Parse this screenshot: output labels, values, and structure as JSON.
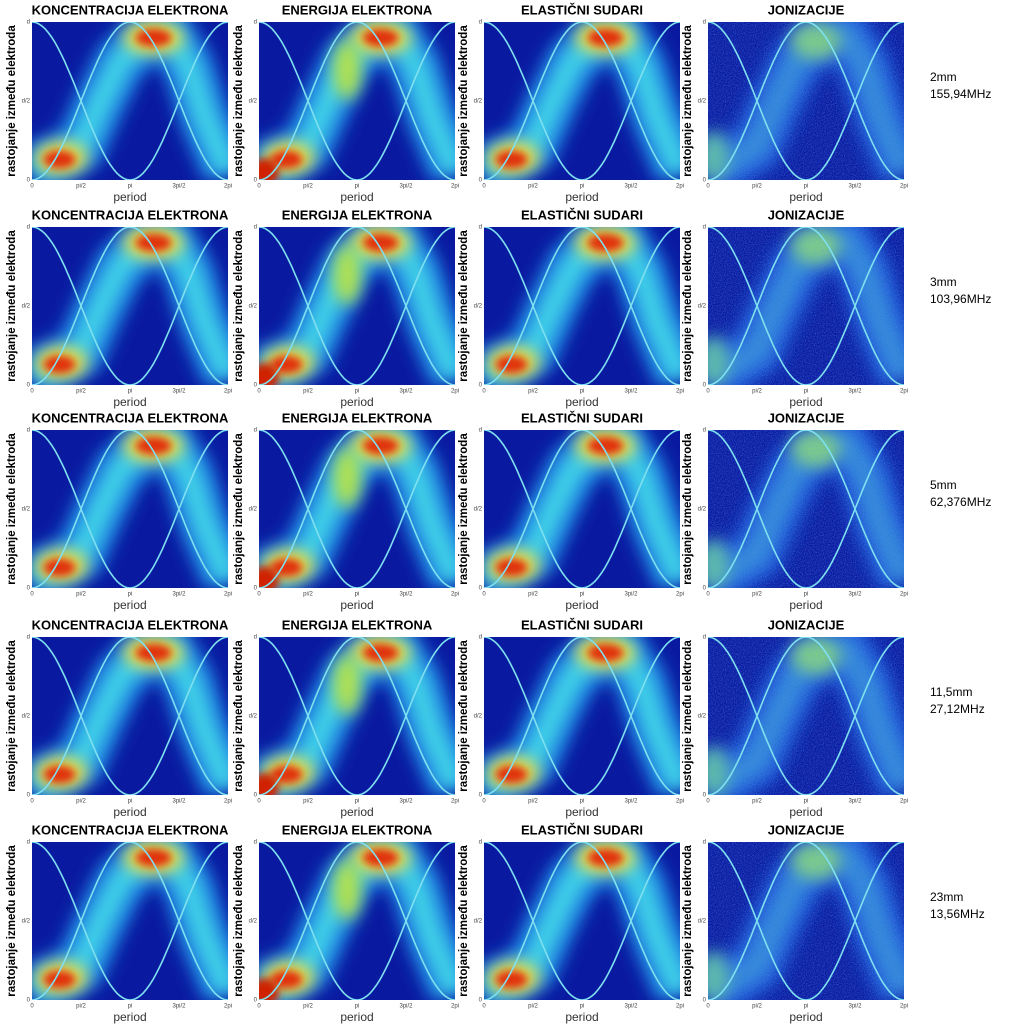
{
  "panel_titles": [
    "KONCENTRACIJA ELEKTRONA",
    "ENERGIJA ELEKTRONA",
    "ELASTIČNI SUDARI",
    "JONIZACIJE"
  ],
  "y_label": "rastojanje između elektroda",
  "x_label": "period",
  "x_ticks": [
    "0",
    "pi/2",
    "pi",
    "3pi/2",
    "2pi"
  ],
  "y_ticks": [
    "0",
    "d/2",
    "d"
  ],
  "rows": [
    {
      "gap": "2mm",
      "frequency": "155,94MHz"
    },
    {
      "gap": "3mm",
      "frequency": "103,96MHz"
    },
    {
      "gap": "5mm",
      "frequency": "62,376MHz"
    },
    {
      "gap": "11,5mm",
      "frequency": "27,12MHz"
    },
    {
      "gap": "23mm",
      "frequency": "13,56MHz"
    }
  ]
}
